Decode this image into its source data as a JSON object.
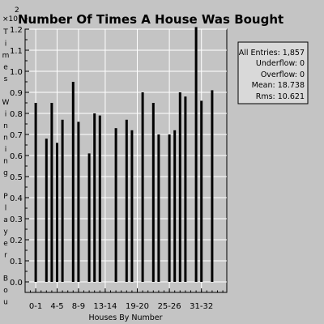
{
  "chart_data": {
    "type": "bar",
    "title": "Number Of Times A House Was Bought",
    "xlabel": "Houses By Number",
    "ylabel": "Times Winning Player Bou",
    "y_exponent_label": "×10",
    "y_exponent_power": "2",
    "ylim": [
      0,
      1.3
    ],
    "yticks": [
      {
        "value": 0,
        "label": "0.0"
      },
      {
        "value": 0.1,
        "label": "0.1"
      },
      {
        "value": 0.2,
        "label": "0.2"
      },
      {
        "value": 0.3,
        "label": "0.3"
      },
      {
        "value": 0.4,
        "label": "0.4"
      },
      {
        "value": 0.5,
        "label": "0.5"
      },
      {
        "value": 0.6,
        "label": "0.6"
      },
      {
        "value": 0.7,
        "label": "0.7"
      },
      {
        "value": 0.8,
        "label": "0.8"
      },
      {
        "value": 0.9,
        "label": "0.9"
      },
      {
        "value": 1.0,
        "label": "1.0"
      },
      {
        "value": 1.1,
        "label": "1.1"
      },
      {
        "value": 1.2,
        "label": "1.2"
      }
    ],
    "xlim": [
      0,
      40
    ],
    "xticks": [
      {
        "value": 1,
        "label": "0-1"
      },
      {
        "value": 5,
        "label": "4-5"
      },
      {
        "value": 9,
        "label": "8-9"
      },
      {
        "value": 14,
        "label": "13-14"
      },
      {
        "value": 20,
        "label": "19-20"
      },
      {
        "value": 26,
        "label": "25-26"
      },
      {
        "value": 32,
        "label": "31-32"
      }
    ],
    "bars": [
      {
        "x": 1,
        "value": 0.85
      },
      {
        "x": 3,
        "value": 0.68
      },
      {
        "x": 4,
        "value": 0.85
      },
      {
        "x": 5,
        "value": 0.66
      },
      {
        "x": 6,
        "value": 0.77
      },
      {
        "x": 8,
        "value": 0.95
      },
      {
        "x": 9,
        "value": 0.76
      },
      {
        "x": 11,
        "value": 0.61
      },
      {
        "x": 12,
        "value": 0.8
      },
      {
        "x": 13,
        "value": 0.79
      },
      {
        "x": 16,
        "value": 0.73
      },
      {
        "x": 18,
        "value": 0.77
      },
      {
        "x": 19,
        "value": 0.72
      },
      {
        "x": 21,
        "value": 0.9
      },
      {
        "x": 23,
        "value": 0.85
      },
      {
        "x": 24,
        "value": 0.7
      },
      {
        "x": 26,
        "value": 0.7
      },
      {
        "x": 27,
        "value": 0.72
      },
      {
        "x": 28,
        "value": 0.9
      },
      {
        "x": 29,
        "value": 0.88
      },
      {
        "x": 31,
        "value": 1.21
      },
      {
        "x": 32,
        "value": 0.86
      },
      {
        "x": 34,
        "value": 0.91
      }
    ],
    "grid": true,
    "stats_box": {
      "entries": "All Entries: 1,857",
      "underflow": "Underflow: 0",
      "overflow": "Overflow: 0",
      "mean": "Mean: 18.738",
      "rms": "Rms: 10.621"
    },
    "colors": {
      "background": "#c4c4c4",
      "bars": "#000000",
      "grid": "#ffffff",
      "stats_box_bg": "#d9d9d9"
    }
  }
}
